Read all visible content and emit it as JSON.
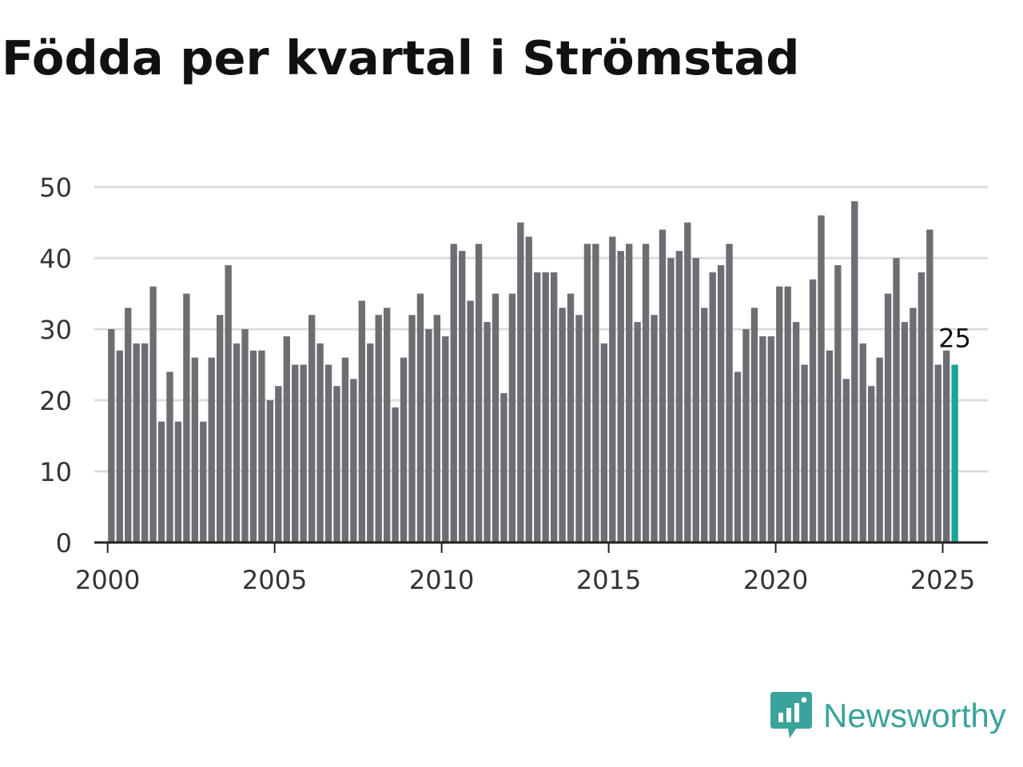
{
  "title": "Födda per kvartal i Strömstad",
  "brand": {
    "name": "Newsworthy",
    "icon": "newsworthy-logo-icon",
    "color": "#3aa39b"
  },
  "colors": {
    "bar": "#6e6d73",
    "highlight": "#1aa59a",
    "grid": "#dcdcdc",
    "axis": "#222222"
  },
  "chart_data": {
    "type": "bar",
    "title": "Födda per kvartal i Strömstad",
    "xlabel": "",
    "ylabel": "",
    "xlim": [
      1999.625,
      2026.375
    ],
    "ylim": [
      0,
      50
    ],
    "yticks": [
      0,
      10,
      20,
      30,
      40,
      50
    ],
    "xticks": [
      2000,
      2005,
      2010,
      2015,
      2020,
      2025
    ],
    "grid": true,
    "x_start": 2000,
    "quarters_per_year": 4,
    "values": [
      30,
      27,
      33,
      28,
      28,
      36,
      17,
      24,
      17,
      35,
      26,
      17,
      26,
      32,
      39,
      28,
      30,
      27,
      27,
      20,
      22,
      29,
      25,
      25,
      32,
      28,
      25,
      22,
      26,
      23,
      34,
      28,
      32,
      33,
      19,
      26,
      32,
      35,
      30,
      32,
      29,
      42,
      41,
      34,
      42,
      31,
      35,
      21,
      35,
      45,
      43,
      38,
      38,
      38,
      33,
      35,
      32,
      42,
      42,
      28,
      43,
      41,
      42,
      31,
      42,
      32,
      44,
      40,
      41,
      45,
      40,
      33,
      38,
      39,
      42,
      24,
      30,
      33,
      29,
      29,
      36,
      36,
      31,
      25,
      37,
      46,
      27,
      39,
      23,
      48,
      28,
      22,
      26,
      35,
      40,
      31,
      33,
      38,
      44,
      25,
      27,
      25
    ],
    "highlight_last": true,
    "last_label": "25"
  }
}
